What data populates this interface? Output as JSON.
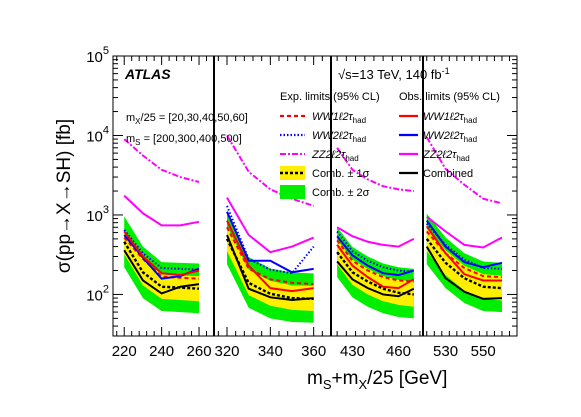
{
  "chart_data": {
    "type": "line",
    "experiment": "ATLAS",
    "energy_label": "√s=13 TeV, 140 fb",
    "energy_sup": "-1",
    "ylabel": "σ(pp→X→SH) [fb]",
    "xlabel": "m",
    "xlabel_sub1": "S",
    "xlabel_mid": "+m",
    "xlabel_sub2": "X",
    "xlabel_tail": "/25 [GeV]",
    "y_scale": "log",
    "ylim": [
      30,
      100000
    ],
    "ytick_labels": [
      "10",
      "10",
      "10",
      "10"
    ],
    "ytick_exps": [
      "2",
      "3",
      "4",
      "5"
    ],
    "mx_label": "m",
    "mx_sub": "X",
    "mx_text": "/25 = [20,30,40,50,60]",
    "ms_label": "m",
    "ms_sub": "S",
    "ms_text": " = [200,300,400,500]",
    "legend_exp_header": "Exp. limits (95% CL)",
    "legend_obs_header": "Obs. limits (95% CL)",
    "legend_placement": "top-right",
    "legend_labels": [
      "WW1ℓ2τ",
      "WW2ℓ2τ",
      "ZZ2ℓ2τ",
      "Comb. ± 1σ",
      "Comb. ± 2σ",
      "WW1ℓ2τ",
      "WW2ℓ2τ",
      "ZZ2ℓ2τ",
      "Combined"
    ],
    "had_sub": "had",
    "colors": {
      "ww1": "#ff0000",
      "ww2": "#0000ff",
      "zz2": "#ff00ff",
      "comb": "#000000",
      "band1": "#ffee00",
      "band2": "#00ee00"
    },
    "panels": [
      {
        "ms": 200,
        "x": [
          220,
          230,
          240,
          250,
          260
        ],
        "xlim": [
          214,
          268
        ],
        "xticks": [
          220,
          240,
          260
        ],
        "xtick_labels": [
          "220",
          "240",
          "260"
        ],
        "exp_comb": [
          460,
          190,
          125,
          122,
          118
        ],
        "band1": {
          "lo": [
            320,
            130,
            88,
            85,
            82
          ],
          "hi": [
            660,
            280,
            178,
            174,
            170
          ]
        },
        "band2": {
          "lo": [
            220,
            90,
            62,
            60,
            58
          ],
          "hi": [
            960,
            400,
            255,
            250,
            245
          ]
        },
        "exp_ww1": [
          520,
          280,
          168,
          162,
          158
        ],
        "exp_ww2": [
          650,
          330,
          215,
          210,
          205
        ],
        "exp_zz2": [
          9000,
          5600,
          3700,
          3000,
          2600
        ],
        "obs_ww1": [
          620,
          300,
          185,
          175,
          200
        ],
        "obs_ww2": [
          560,
          290,
          158,
          170,
          212
        ],
        "obs_zz2": [
          1750,
          1050,
          740,
          740,
          820
        ],
        "obs_comb": [
          360,
          150,
          103,
          125,
          135
        ]
      },
      {
        "ms": 300,
        "x": [
          320,
          330,
          340,
          350,
          360
        ],
        "xlim": [
          314,
          368
        ],
        "xticks": [
          320,
          340,
          360
        ],
        "xtick_labels": [
          "320",
          "340",
          "360"
        ],
        "exp_comb": [
          500,
          140,
          102,
          90,
          88
        ],
        "band1": {
          "lo": [
            350,
            98,
            72,
            64,
            62
          ],
          "hi": [
            720,
            205,
            148,
            130,
            128
          ]
        },
        "band2": {
          "lo": [
            240,
            68,
            50,
            45,
            44
          ],
          "hi": [
            1050,
            295,
            212,
            188,
            184
          ]
        },
        "exp_ww1": [
          700,
          210,
          155,
          140,
          135
        ],
        "exp_ww2": [
          1300,
          280,
          205,
          185,
          400
        ],
        "exp_zz2": [
          10000,
          3500,
          2100,
          1600,
          1300
        ],
        "obs_ww1": [
          850,
          230,
          120,
          110,
          120
        ],
        "obs_ww2": [
          1100,
          265,
          265,
          190,
          210
        ],
        "obs_zz2": [
          1650,
          560,
          340,
          400,
          520
        ],
        "obs_comb": [
          560,
          118,
          92,
          85,
          90
        ]
      },
      {
        "ms": 400,
        "x": [
          420,
          430,
          440,
          450,
          460,
          470
        ],
        "xlim": [
          416,
          476
        ],
        "xticks": [
          430,
          460
        ],
        "xtick_labels": [
          "430",
          "460"
        ],
        "exp_comb": [
          340,
          190,
          145,
          118,
          105,
          100
        ],
        "band1": {
          "lo": [
            240,
            132,
            100,
            82,
            74,
            70
          ],
          "hi": [
            490,
            275,
            210,
            170,
            152,
            146
          ]
        },
        "band2": {
          "lo": [
            165,
            92,
            70,
            58,
            52,
            50
          ],
          "hi": [
            700,
            395,
            300,
            245,
            220,
            210
          ]
        },
        "exp_ww1": [
          480,
          265,
          200,
          165,
          150,
          145
        ],
        "exp_ww2": [
          620,
          350,
          265,
          220,
          200,
          195
        ],
        "exp_zz2": [
          7000,
          3700,
          2800,
          2300,
          2100,
          2000
        ],
        "obs_ww1": [
          420,
          230,
          165,
          125,
          120,
          155
        ],
        "obs_ww2": [
          540,
          310,
          230,
          185,
          175,
          200
        ],
        "obs_zz2": [
          700,
          540,
          460,
          420,
          400,
          500
        ],
        "obs_comb": [
          260,
          155,
          120,
          100,
          95,
          118
        ]
      },
      {
        "ms": 500,
        "x": [
          520,
          530,
          540,
          550,
          560
        ],
        "xlim": [
          518,
          568
        ],
        "xticks": [
          530,
          550
        ],
        "xtick_labels": [
          "530",
          "550"
        ],
        "exp_comb": [
          500,
          250,
          160,
          125,
          120
        ],
        "band1": {
          "lo": [
            350,
            175,
            112,
            88,
            84
          ],
          "hi": [
            720,
            360,
            230,
            180,
            172
          ]
        },
        "band2": {
          "lo": [
            240,
            120,
            78,
            62,
            60
          ],
          "hi": [
            1040,
            520,
            330,
            260,
            250
          ]
        },
        "exp_ww1": [
          620,
          330,
          215,
          170,
          165
        ],
        "exp_ww2": [
          780,
          420,
          275,
          215,
          210
        ],
        "exp_zz2": [
          9500,
          3800,
          2400,
          1600,
          1400
        ],
        "obs_ww1": [
          720,
          330,
          180,
          150,
          150
        ],
        "obs_ww2": [
          850,
          400,
          255,
          220,
          250
        ],
        "obs_zz2": [
          950,
          620,
          420,
          390,
          520
        ],
        "obs_comb": [
          400,
          160,
          108,
          88,
          90
        ]
      }
    ]
  }
}
